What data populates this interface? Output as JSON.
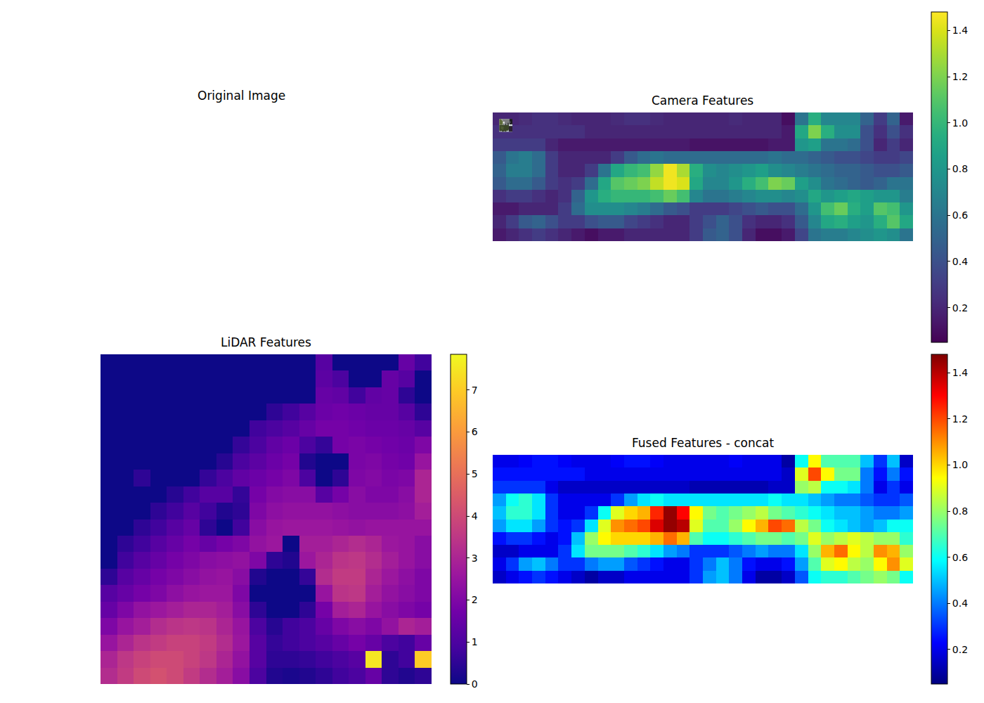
{
  "chart_data": [
    {
      "type": "image",
      "title": "Original Image",
      "tick_labels": false
    },
    {
      "type": "heatmap",
      "title": "Camera Features",
      "color": "viridis",
      "tick_labels": false,
      "cells": [
        [
          0.2,
          0.2,
          0.22,
          0.25,
          0.25,
          0.22,
          0.2,
          0.2,
          0.2,
          0.22,
          0.25,
          0.25,
          0.22,
          0.2,
          0.2,
          0.2,
          0.2,
          0.2,
          0.22,
          0.2,
          0.2,
          0.2,
          0.1,
          0.6,
          0.95,
          0.7,
          0.7,
          0.7,
          0.5,
          0.3,
          0.5,
          0.15
        ],
        [
          0.25,
          0.25,
          0.25,
          0.25,
          0.25,
          0.25,
          0.25,
          0.2,
          0.2,
          0.2,
          0.2,
          0.2,
          0.2,
          0.2,
          0.2,
          0.2,
          0.2,
          0.2,
          0.2,
          0.2,
          0.2,
          0.2,
          0.15,
          0.9,
          1.2,
          0.95,
          0.75,
          0.75,
          0.4,
          0.25,
          0.4,
          0.25
        ],
        [
          0.3,
          0.3,
          0.3,
          0.3,
          0.2,
          0.15,
          0.15,
          0.15,
          0.15,
          0.15,
          0.15,
          0.15,
          0.15,
          0.15,
          0.15,
          0.12,
          0.12,
          0.12,
          0.12,
          0.12,
          0.12,
          0.15,
          0.15,
          0.8,
          0.85,
          0.6,
          0.6,
          0.55,
          0.4,
          0.2,
          0.3,
          0.2
        ],
        [
          0.45,
          0.6,
          0.65,
          0.55,
          0.3,
          0.2,
          0.2,
          0.2,
          0.2,
          0.3,
          0.45,
          0.55,
          0.6,
          0.55,
          0.55,
          0.55,
          0.55,
          0.55,
          0.55,
          0.55,
          0.55,
          0.6,
          0.55,
          0.55,
          0.5,
          0.45,
          0.4,
          0.4,
          0.35,
          0.3,
          0.3,
          0.35
        ],
        [
          0.5,
          0.65,
          0.65,
          0.55,
          0.3,
          0.2,
          0.2,
          0.3,
          0.6,
          0.9,
          1.0,
          1.05,
          1.25,
          1.45,
          1.3,
          0.95,
          0.75,
          0.7,
          0.75,
          0.8,
          0.85,
          0.75,
          0.7,
          0.65,
          0.6,
          0.55,
          0.5,
          0.5,
          0.45,
          0.4,
          0.4,
          0.45
        ],
        [
          0.45,
          0.55,
          0.55,
          0.45,
          0.3,
          0.25,
          0.3,
          0.55,
          0.9,
          1.1,
          1.15,
          1.2,
          1.35,
          1.45,
          1.4,
          0.9,
          0.7,
          0.7,
          0.8,
          0.95,
          1.05,
          1.2,
          1.15,
          0.85,
          0.75,
          0.6,
          0.55,
          0.5,
          0.45,
          0.5,
          0.6,
          0.6
        ],
        [
          0.25,
          0.3,
          0.3,
          0.25,
          0.2,
          0.25,
          0.5,
          0.8,
          0.95,
          1.0,
          1.0,
          1.0,
          1.05,
          1.15,
          1.05,
          0.7,
          0.6,
          0.6,
          0.65,
          0.7,
          0.75,
          0.75,
          0.7,
          0.75,
          0.9,
          0.8,
          0.85,
          0.9,
          0.85,
          0.8,
          0.8,
          0.65
        ],
        [
          0.15,
          0.15,
          0.2,
          0.2,
          0.2,
          0.3,
          0.55,
          0.75,
          0.75,
          0.75,
          0.7,
          0.65,
          0.55,
          0.45,
          0.4,
          0.3,
          0.3,
          0.3,
          0.35,
          0.4,
          0.45,
          0.4,
          0.4,
          0.55,
          0.8,
          1.05,
          1.15,
          0.95,
          0.85,
          1.1,
          1.05,
          0.8
        ],
        [
          0.2,
          0.3,
          0.45,
          0.5,
          0.4,
          0.3,
          0.3,
          0.4,
          0.45,
          0.45,
          0.35,
          0.3,
          0.25,
          0.2,
          0.2,
          0.3,
          0.4,
          0.5,
          0.4,
          0.25,
          0.2,
          0.2,
          0.25,
          0.45,
          0.7,
          0.9,
          0.95,
          0.85,
          0.8,
          0.95,
          1.1,
          0.9
        ],
        [
          0.15,
          0.2,
          0.25,
          0.3,
          0.25,
          0.2,
          0.15,
          0.1,
          0.15,
          0.15,
          0.2,
          0.2,
          0.2,
          0.2,
          0.2,
          0.3,
          0.45,
          0.5,
          0.4,
          0.2,
          0.1,
          0.1,
          0.15,
          0.35,
          0.6,
          0.65,
          0.65,
          0.7,
          0.75,
          0.8,
          0.75,
          0.6
        ]
      ],
      "colorbar": {
        "range": [
          0.05,
          1.48
        ],
        "ticks": [
          0.2,
          0.4,
          0.6,
          0.8,
          {
            "value": 1,
            "label": "1.0"
          },
          1.2,
          1.4
        ]
      }
    },
    {
      "type": "heatmap",
      "title": "LiDAR Features",
      "color": "plasma",
      "tick_labels": false,
      "cells": [
        [
          0,
          0,
          0,
          0,
          0,
          0,
          0,
          0,
          0,
          0,
          0,
          0,
          0,
          1.2,
          0,
          0,
          0,
          0,
          1.5,
          0.8
        ],
        [
          0,
          0,
          0,
          0,
          0,
          0,
          0,
          0,
          0,
          0,
          0,
          0,
          0,
          1.3,
          1.0,
          0,
          0,
          1.5,
          1.2,
          0
        ],
        [
          0,
          0,
          0,
          0,
          0,
          0,
          0,
          0,
          0,
          0,
          0,
          0,
          0,
          1.5,
          1.4,
          0.8,
          1.4,
          1.5,
          0.5,
          0
        ],
        [
          0,
          0,
          0,
          0,
          0,
          0,
          0,
          0,
          0,
          0,
          0.5,
          0.8,
          1.2,
          1.6,
          1.7,
          1.6,
          1.5,
          1.5,
          1.2,
          0.5
        ],
        [
          0,
          0,
          0,
          0,
          0,
          0,
          0,
          0,
          0,
          0.8,
          1.0,
          1.2,
          1.5,
          1.8,
          1.8,
          1.7,
          1.6,
          1.6,
          1.5,
          1.2
        ],
        [
          0,
          0,
          0,
          0,
          0,
          0,
          0,
          0,
          0.6,
          1.0,
          1.4,
          1.6,
          1.0,
          0.6,
          1.8,
          1.9,
          1.8,
          1.7,
          1.6,
          2.0
        ],
        [
          0,
          0,
          0,
          0,
          0,
          0,
          0,
          0.4,
          1.0,
          1.3,
          1.6,
          1.8,
          0.3,
          0,
          0,
          1.9,
          2.0,
          1.8,
          1.7,
          2.5
        ],
        [
          0,
          0,
          0.5,
          0,
          0,
          0,
          0.6,
          1.0,
          1.4,
          1.6,
          1.8,
          2.0,
          1.0,
          0,
          0.5,
          2.0,
          2.1,
          1.9,
          2.0,
          3.0
        ],
        [
          0,
          0,
          0,
          0,
          0.4,
          0.8,
          1.2,
          1.2,
          0.6,
          1.8,
          2.1,
          2.2,
          2.2,
          1.2,
          1.8,
          2.2,
          2.0,
          2.0,
          2.2,
          3.0
        ],
        [
          0,
          0,
          0,
          0.5,
          0.8,
          1.2,
          0.8,
          0.3,
          0.5,
          2.0,
          2.3,
          2.4,
          2.4,
          2.4,
          2.3,
          2.2,
          2.2,
          2.2,
          2.3,
          2.8
        ],
        [
          0,
          0,
          0.5,
          0.8,
          1.2,
          1.5,
          0.5,
          0,
          0.8,
          2.2,
          2.5,
          2.6,
          2.6,
          2.6,
          2.5,
          2.4,
          2.5,
          2.5,
          2.5,
          2.5
        ],
        [
          0,
          0.5,
          0.8,
          1.2,
          1.5,
          1.8,
          1.5,
          1.8,
          2.0,
          2.4,
          2.6,
          0,
          2.8,
          2.8,
          3.0,
          3.2,
          3.0,
          2.6,
          2.5,
          2.2
        ],
        [
          0,
          0.8,
          1.2,
          1.5,
          1.8,
          2.0,
          2.2,
          2.3,
          2.4,
          2.0,
          0.5,
          0.3,
          2.6,
          3.0,
          3.4,
          3.5,
          3.2,
          2.8,
          2.5,
          2.2
        ],
        [
          0.5,
          1.2,
          1.5,
          1.8,
          2.0,
          2.2,
          2.4,
          2.5,
          2.2,
          0.3,
          0,
          0,
          0.6,
          3.2,
          3.6,
          3.6,
          3.0,
          2.6,
          2.3,
          2.0
        ],
        [
          1.2,
          1.5,
          1.8,
          2.0,
          2.3,
          2.5,
          2.6,
          2.6,
          2.0,
          0,
          0,
          0,
          0,
          2.5,
          3.4,
          3.5,
          2.8,
          2.4,
          2.2,
          2.0
        ],
        [
          1.5,
          2.0,
          2.4,
          2.6,
          2.8,
          3.0,
          3.0,
          2.8,
          2.2,
          0.5,
          0,
          0,
          0.5,
          1.8,
          2.8,
          3.0,
          2.5,
          2.2,
          2.0,
          1.8
        ],
        [
          2.0,
          2.5,
          2.8,
          3.2,
          3.4,
          3.5,
          3.4,
          3.0,
          2.5,
          1.0,
          0.4,
          0.8,
          1.0,
          1.5,
          2.0,
          2.2,
          2.0,
          2.4,
          3.0,
          2.8
        ],
        [
          2.5,
          3.0,
          3.4,
          3.6,
          3.8,
          3.8,
          3.6,
          3.2,
          2.6,
          1.2,
          0.6,
          0.8,
          1.0,
          1.2,
          1.5,
          1.8,
          1.5,
          1.0,
          0.8,
          1.5
        ],
        [
          3.0,
          3.5,
          3.8,
          4.0,
          4.0,
          3.8,
          3.5,
          3.0,
          2.4,
          1.2,
          0.5,
          0.5,
          0.6,
          0.8,
          1.0,
          1.2,
          7.5,
          0.5,
          0.8,
          7.0
        ],
        [
          3.2,
          3.6,
          4.0,
          4.2,
          4.0,
          3.6,
          3.2,
          2.8,
          2.2,
          1.0,
          0.3,
          0.2,
          0.3,
          0.5,
          0.8,
          1.0,
          1.5,
          0.5,
          0.3,
          0.5
        ]
      ],
      "colorbar": {
        "range": [
          0,
          7.85
        ],
        "ticks": [
          0,
          1,
          2,
          3,
          4,
          5,
          6,
          7
        ]
      }
    },
    {
      "type": "heatmap",
      "title": "Fused Features - concat",
      "color": "jet",
      "tick_labels": false,
      "cells": [
        [
          0.2,
          0.2,
          0.22,
          0.25,
          0.25,
          0.22,
          0.2,
          0.2,
          0.2,
          0.22,
          0.25,
          0.25,
          0.22,
          0.2,
          0.2,
          0.2,
          0.2,
          0.2,
          0.22,
          0.2,
          0.2,
          0.2,
          0.1,
          0.6,
          0.95,
          0.7,
          0.7,
          0.7,
          0.5,
          0.3,
          0.5,
          0.15
        ],
        [
          0.25,
          0.25,
          0.25,
          0.25,
          0.25,
          0.25,
          0.25,
          0.2,
          0.2,
          0.2,
          0.2,
          0.2,
          0.2,
          0.2,
          0.2,
          0.2,
          0.2,
          0.2,
          0.2,
          0.2,
          0.2,
          0.2,
          0.15,
          0.9,
          1.2,
          0.95,
          0.75,
          0.75,
          0.4,
          0.25,
          0.4,
          0.25
        ],
        [
          0.3,
          0.3,
          0.3,
          0.3,
          0.2,
          0.15,
          0.15,
          0.15,
          0.15,
          0.15,
          0.15,
          0.15,
          0.15,
          0.15,
          0.15,
          0.12,
          0.12,
          0.12,
          0.12,
          0.12,
          0.12,
          0.15,
          0.15,
          0.8,
          0.85,
          0.6,
          0.6,
          0.55,
          0.4,
          0.2,
          0.3,
          0.2
        ],
        [
          0.45,
          0.6,
          0.65,
          0.55,
          0.3,
          0.2,
          0.2,
          0.2,
          0.2,
          0.3,
          0.45,
          0.55,
          0.6,
          0.55,
          0.55,
          0.55,
          0.55,
          0.55,
          0.55,
          0.55,
          0.55,
          0.6,
          0.55,
          0.55,
          0.5,
          0.45,
          0.4,
          0.4,
          0.35,
          0.3,
          0.3,
          0.35
        ],
        [
          0.5,
          0.65,
          0.65,
          0.55,
          0.3,
          0.2,
          0.2,
          0.3,
          0.6,
          0.9,
          1.0,
          1.05,
          1.25,
          1.45,
          1.3,
          0.95,
          0.75,
          0.7,
          0.75,
          0.8,
          0.85,
          0.75,
          0.7,
          0.65,
          0.6,
          0.55,
          0.5,
          0.5,
          0.45,
          0.4,
          0.4,
          0.45
        ],
        [
          0.45,
          0.55,
          0.55,
          0.45,
          0.3,
          0.25,
          0.3,
          0.55,
          0.9,
          1.1,
          1.15,
          1.2,
          1.35,
          1.45,
          1.4,
          0.9,
          0.7,
          0.7,
          0.8,
          0.95,
          1.05,
          1.2,
          1.15,
          0.85,
          0.75,
          0.6,
          0.55,
          0.5,
          0.45,
          0.5,
          0.6,
          0.6
        ],
        [
          0.25,
          0.3,
          0.3,
          0.25,
          0.2,
          0.25,
          0.5,
          0.8,
          0.95,
          1.0,
          1.0,
          1.0,
          1.05,
          1.15,
          1.05,
          0.7,
          0.6,
          0.6,
          0.65,
          0.7,
          0.75,
          0.75,
          0.7,
          0.75,
          0.9,
          0.8,
          0.85,
          0.9,
          0.85,
          0.8,
          0.8,
          0.65
        ],
        [
          0.15,
          0.15,
          0.2,
          0.2,
          0.2,
          0.3,
          0.55,
          0.75,
          0.75,
          0.75,
          0.7,
          0.65,
          0.55,
          0.45,
          0.4,
          0.3,
          0.3,
          0.3,
          0.35,
          0.4,
          0.45,
          0.4,
          0.4,
          0.55,
          0.8,
          1.05,
          1.15,
          0.95,
          0.85,
          1.1,
          1.05,
          0.8
        ],
        [
          0.2,
          0.3,
          0.45,
          0.5,
          0.4,
          0.3,
          0.3,
          0.4,
          0.45,
          0.45,
          0.35,
          0.3,
          0.25,
          0.2,
          0.2,
          0.3,
          0.4,
          0.5,
          0.4,
          0.25,
          0.2,
          0.2,
          0.25,
          0.45,
          0.7,
          0.9,
          0.95,
          0.85,
          0.8,
          0.95,
          1.1,
          0.9
        ],
        [
          0.15,
          0.2,
          0.25,
          0.3,
          0.25,
          0.2,
          0.15,
          0.1,
          0.15,
          0.15,
          0.2,
          0.2,
          0.2,
          0.2,
          0.2,
          0.3,
          0.45,
          0.5,
          0.4,
          0.2,
          0.1,
          0.1,
          0.15,
          0.35,
          0.6,
          0.65,
          0.65,
          0.7,
          0.75,
          0.8,
          0.75,
          0.6
        ]
      ],
      "colorbar": {
        "range": [
          0.05,
          1.48
        ],
        "ticks": [
          0.2,
          0.4,
          0.6,
          0.8,
          {
            "value": 1,
            "label": "1.0"
          },
          1.2,
          1.4
        ]
      }
    }
  ]
}
